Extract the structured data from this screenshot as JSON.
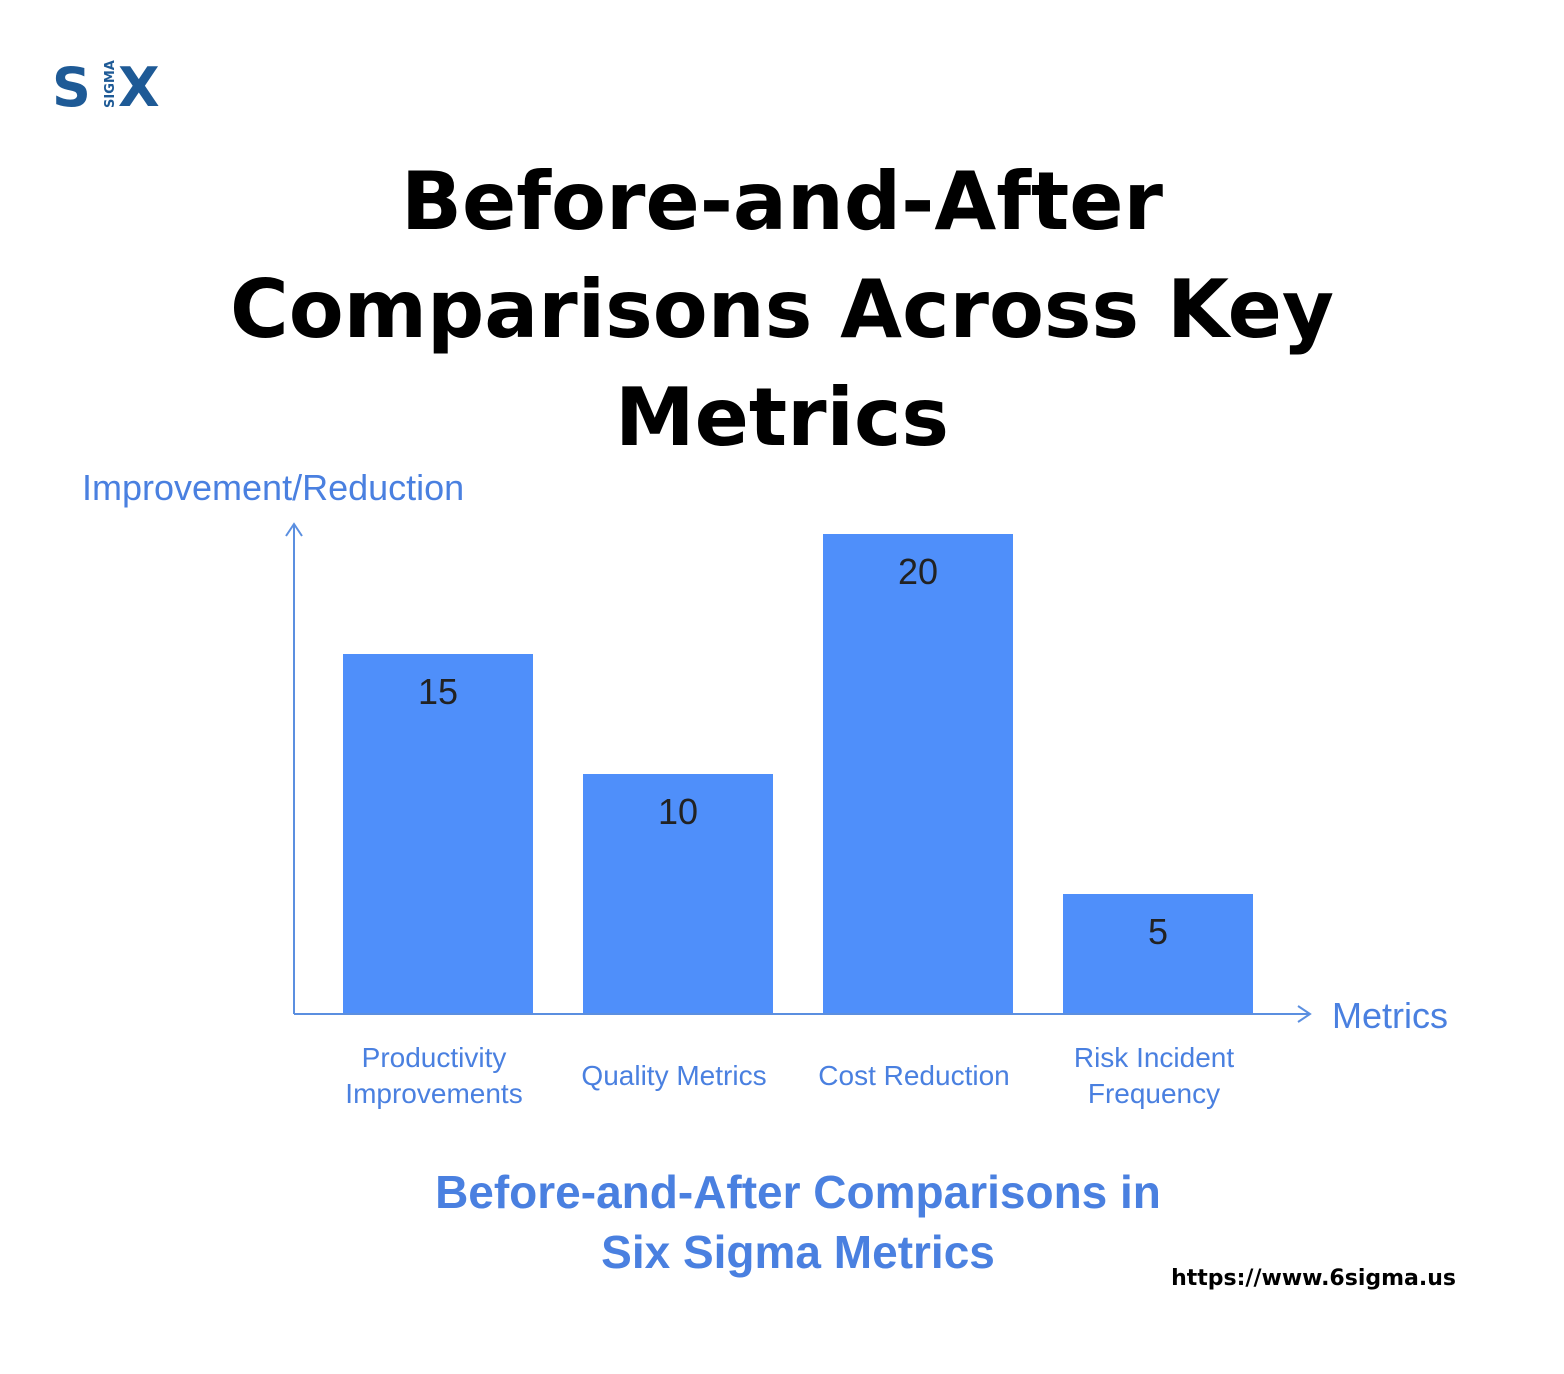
{
  "logo": {
    "letter_left": "S",
    "vertical_text": "SIGMA",
    "letter_right": "X",
    "color": "#1e5a96"
  },
  "title": {
    "line1": "Before-and-After",
    "line2": "Comparisons Across Key",
    "line3": "Metrics"
  },
  "caption": {
    "line1": "Before-and-After Comparisons in",
    "line2": "Six Sigma Metrics"
  },
  "url": "https://www.6sigma.us",
  "colors": {
    "bar": "#4f8ffa",
    "axis": "#5b8fe0",
    "label": "#4a80e0",
    "value_text": "#222222"
  },
  "chart_data": {
    "type": "bar",
    "categories": [
      [
        "Productivity",
        "Improvements"
      ],
      [
        "Quality Metrics"
      ],
      [
        "Cost Reduction"
      ],
      [
        "Risk Incident",
        "Frequency"
      ]
    ],
    "values": [
      15,
      10,
      20,
      5
    ],
    "data_labels": [
      "15",
      "10",
      "20",
      "5"
    ],
    "title": "Before-and-After Comparisons in Six Sigma Metrics",
    "xlabel": "Metrics",
    "ylabel": "Improvement/Reduction",
    "ylim": [
      0,
      20
    ],
    "grid": false,
    "legend": "none"
  }
}
